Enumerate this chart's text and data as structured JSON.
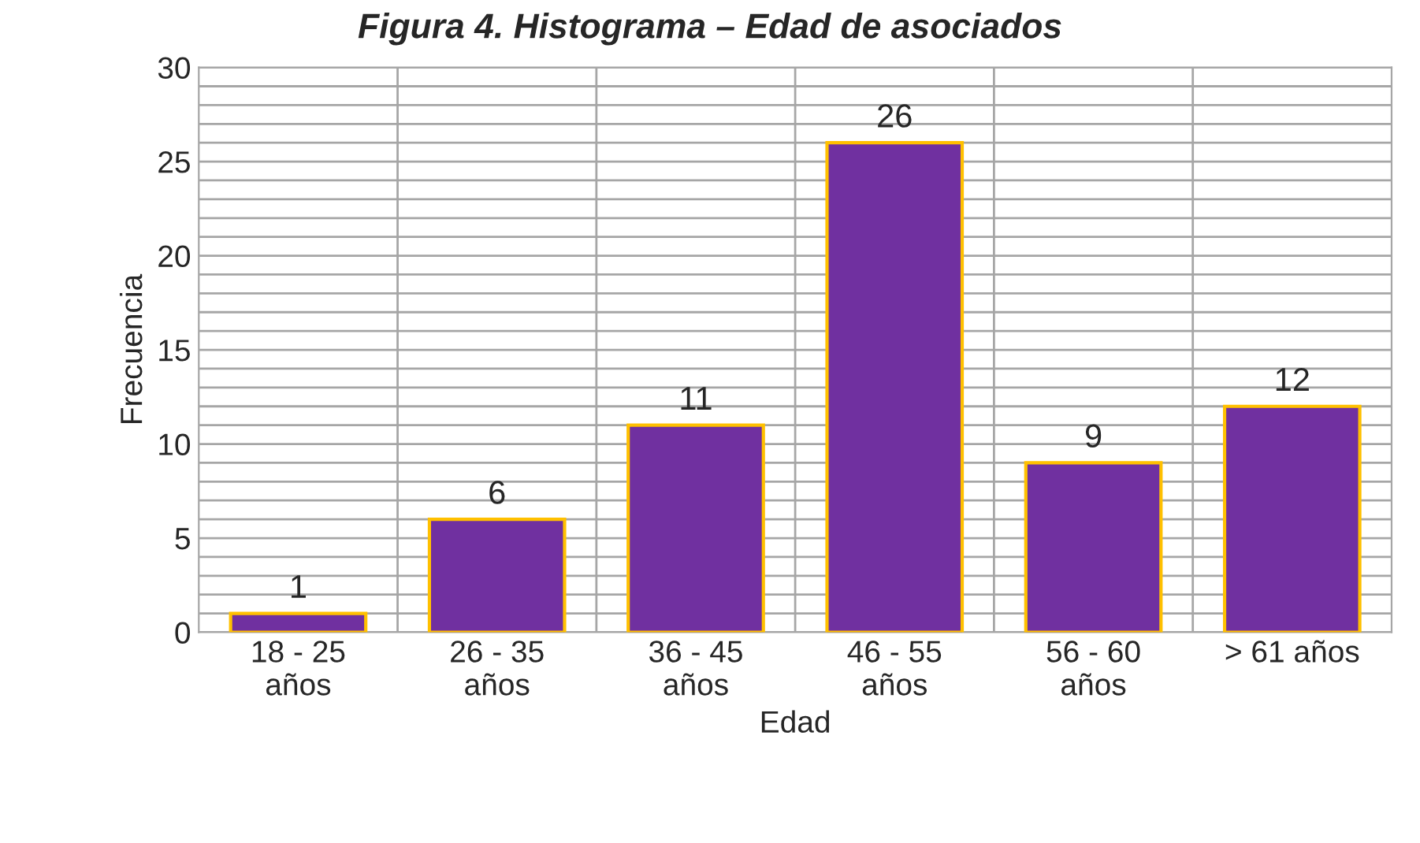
{
  "chart_data": {
    "type": "bar",
    "title": "Figura 4. Histograma – Edad de asociados",
    "xlabel": "Edad",
    "ylabel": "Frecuencia",
    "categories": [
      "18 - 25\naños",
      "26 - 35\naños",
      "36 - 45\naños",
      "46 - 55\naños",
      "56 - 60\naños",
      "> 61 años"
    ],
    "values": [
      1,
      6,
      11,
      26,
      9,
      12
    ],
    "color": "#7030a0",
    "ylim": [
      0,
      30
    ],
    "yticks": [
      0,
      5,
      10,
      15,
      20,
      25,
      30
    ],
    "grid": true,
    "data_labels": true
  }
}
